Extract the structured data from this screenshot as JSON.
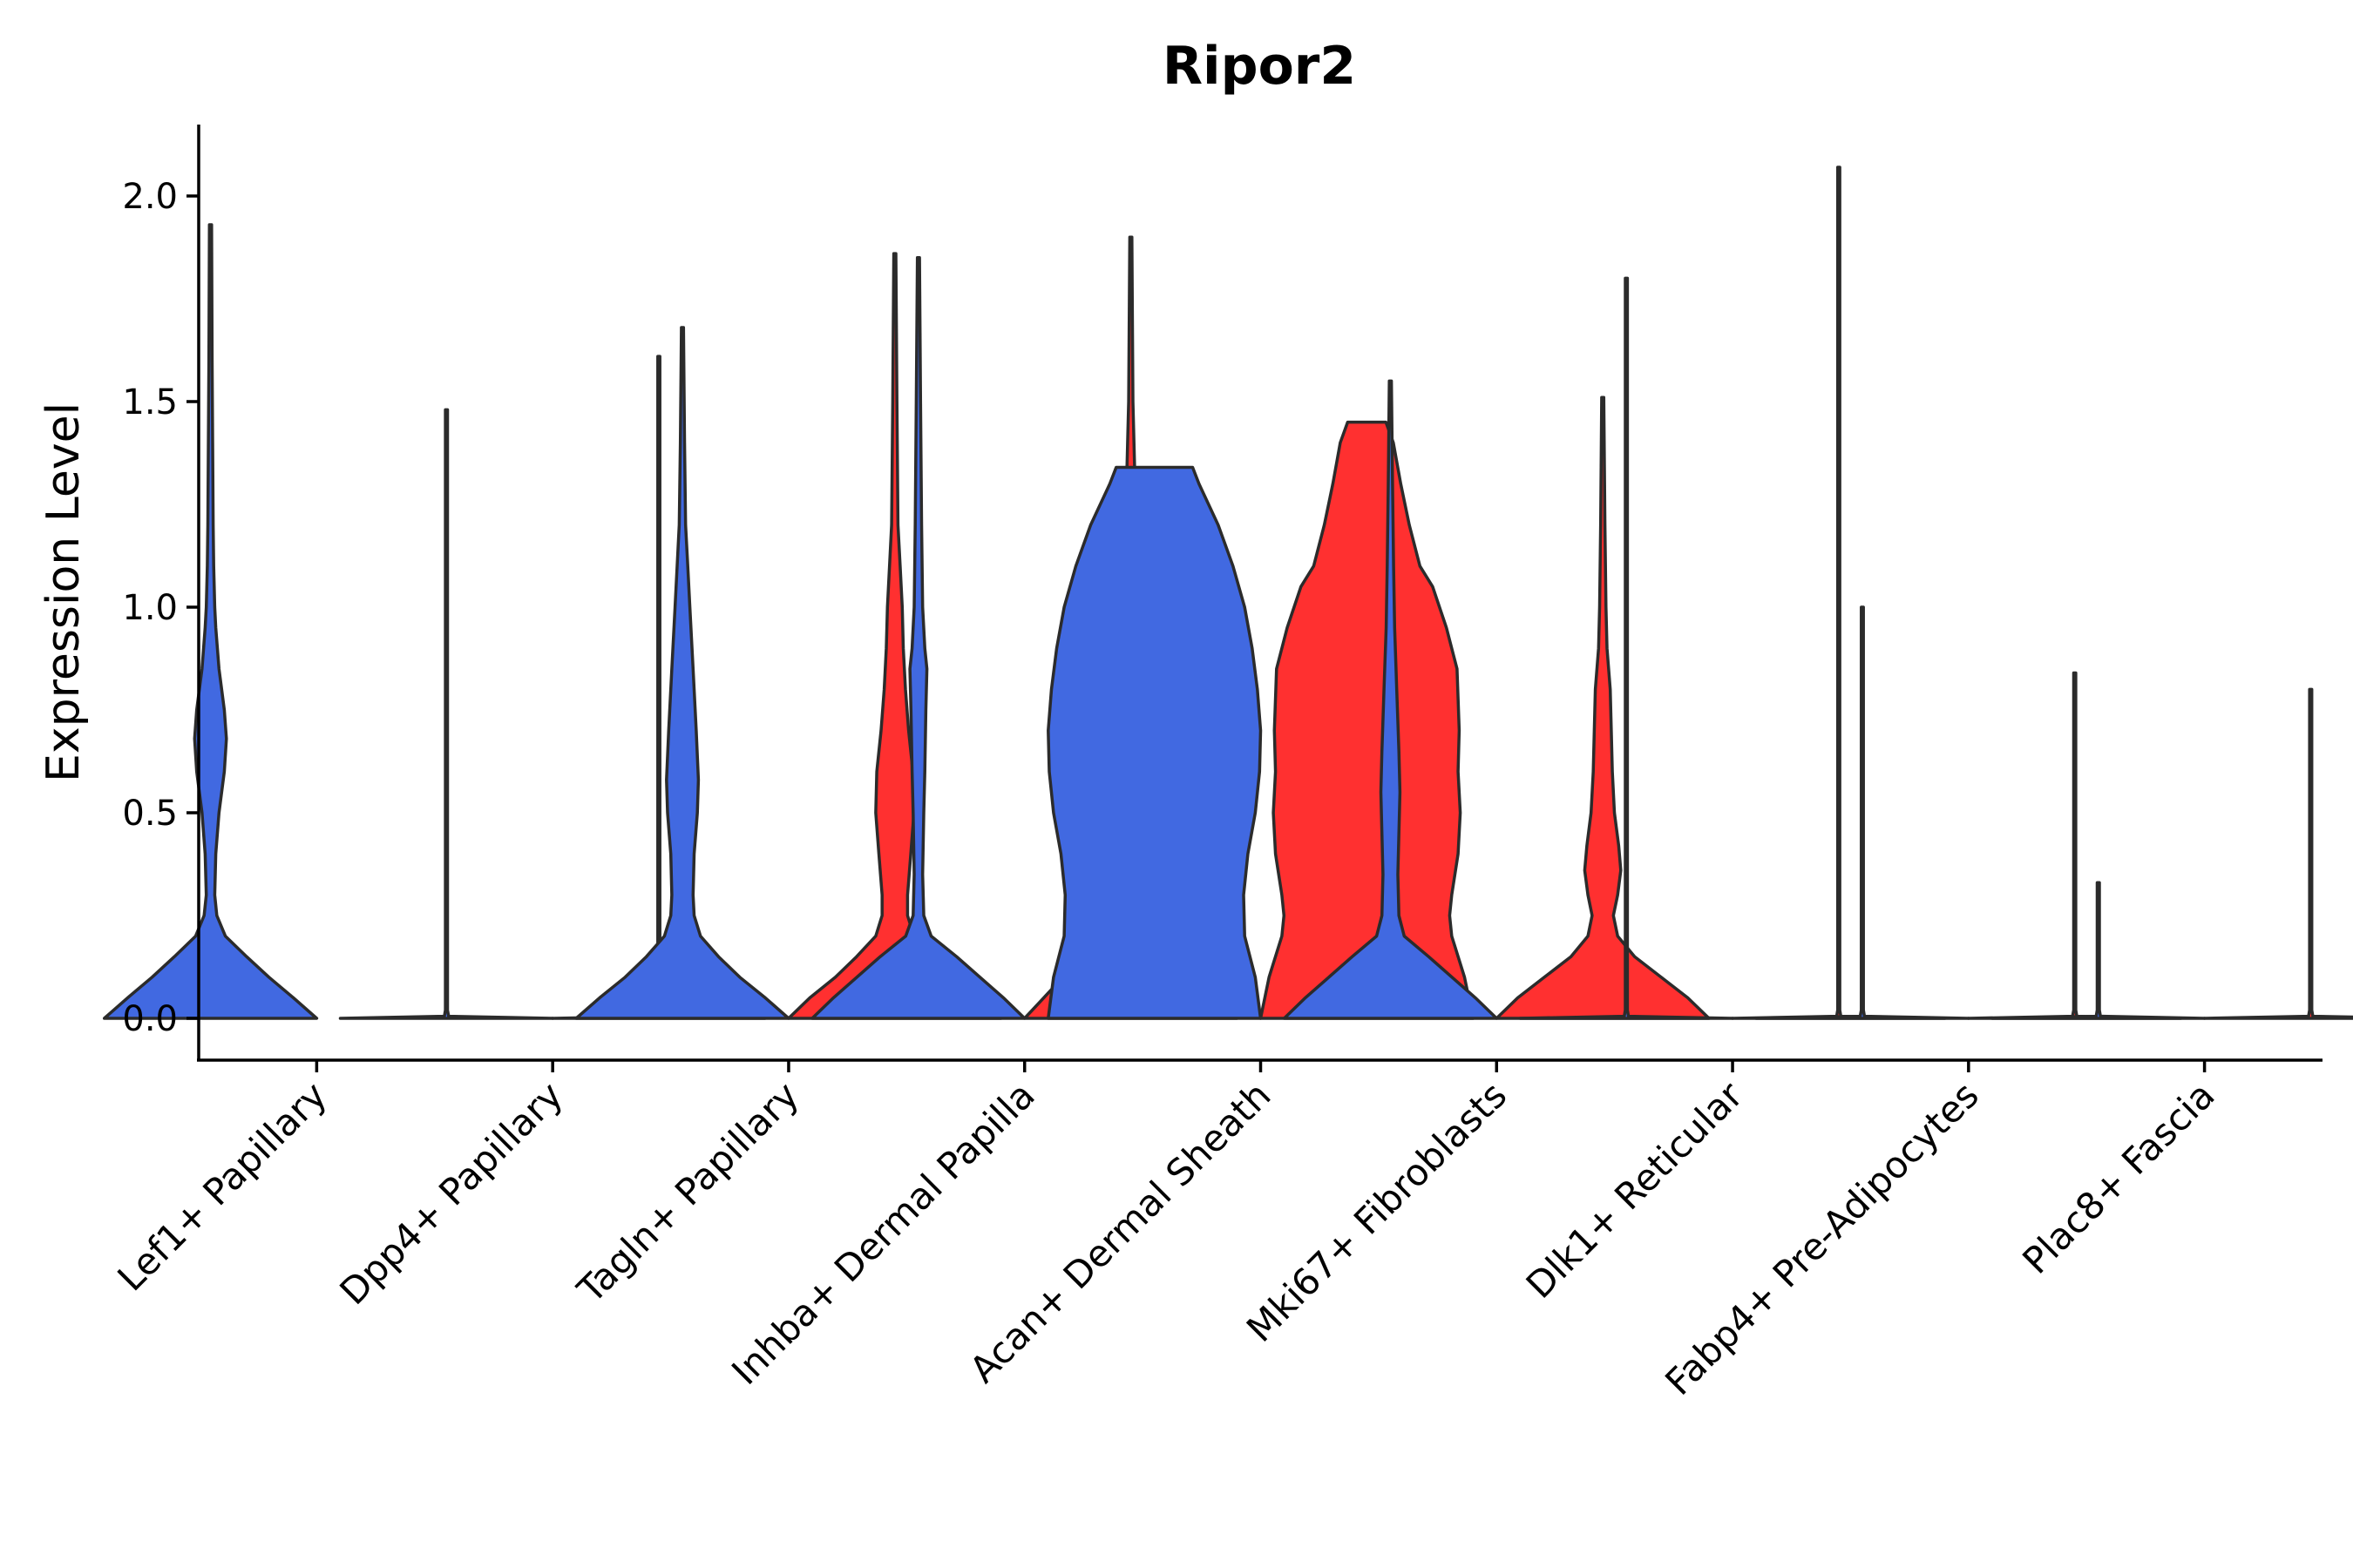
{
  "chart_data": {
    "type": "violin",
    "title": "Ripor2",
    "xlabel": "",
    "ylabel": "Expression Level",
    "ylim": [
      -0.1,
      2.18
    ],
    "yticks": [
      "0.0",
      "0.5",
      "1.0",
      "1.5",
      "2.0"
    ],
    "ytick_values": [
      0,
      0.5,
      1.0,
      1.5,
      2.0
    ],
    "grid": false,
    "legend": "none",
    "colors": {
      "blue": "#4169E1",
      "red": "#FF3030",
      "outline": "#2b2b2b"
    },
    "categories": [
      "Lef1+ Papillary",
      "Dpp4+ Papillary",
      "Tagln+ Papillary",
      "Inhba+ Dermal Papilla",
      "Acan+ Dermal Sheath",
      "Mki67+ Fibroblasts",
      "Dlk1+ Reticular",
      "Fabp4+ Pre-Adipocytes",
      "Plac8+ Fascia"
    ],
    "violins": [
      {
        "category": "Lef1+ Papillary",
        "side": "left",
        "color": "blue",
        "max": 1.93,
        "profile": [
          [
            0,
            1.0
          ],
          [
            0.05,
            0.78
          ],
          [
            0.1,
            0.55
          ],
          [
            0.15,
            0.34
          ],
          [
            0.2,
            0.14
          ],
          [
            0.25,
            0.06
          ],
          [
            0.3,
            0.04
          ],
          [
            0.4,
            0.05
          ],
          [
            0.5,
            0.08
          ],
          [
            0.6,
            0.13
          ],
          [
            0.68,
            0.15
          ],
          [
            0.75,
            0.13
          ],
          [
            0.85,
            0.08
          ],
          [
            0.95,
            0.05
          ],
          [
            1.0,
            0.04
          ],
          [
            1.1,
            0.03
          ],
          [
            1.2,
            0.025
          ],
          [
            1.4,
            0.02
          ],
          [
            1.6,
            0.015
          ],
          [
            1.93,
            0.01
          ]
        ]
      },
      {
        "category": "Dpp4+ Papillary",
        "side": "left",
        "color": "blue",
        "max": 1.48,
        "profile": [
          [
            0,
            1.0
          ],
          [
            0.005,
            0.02
          ],
          [
            0.02,
            0.01
          ],
          [
            1.48,
            0.01
          ]
        ]
      },
      {
        "category": "Dpp4+ Papillary",
        "side": "right",
        "color": "red",
        "max": 1.61,
        "profile": [
          [
            0,
            1.0
          ],
          [
            0.005,
            0.02
          ],
          [
            0.02,
            0.01
          ],
          [
            1.61,
            0.01
          ]
        ]
      },
      {
        "category": "Tagln+ Papillary",
        "side": "left",
        "color": "blue",
        "max": 1.68,
        "profile": [
          [
            0,
            1.0
          ],
          [
            0.05,
            0.78
          ],
          [
            0.1,
            0.54
          ],
          [
            0.15,
            0.34
          ],
          [
            0.2,
            0.17
          ],
          [
            0.25,
            0.11
          ],
          [
            0.3,
            0.1
          ],
          [
            0.4,
            0.11
          ],
          [
            0.5,
            0.14
          ],
          [
            0.58,
            0.15
          ],
          [
            0.7,
            0.13
          ],
          [
            0.85,
            0.1
          ],
          [
            1.0,
            0.07
          ],
          [
            1.1,
            0.05
          ],
          [
            1.2,
            0.03
          ],
          [
            1.4,
            0.02
          ],
          [
            1.68,
            0.01
          ]
        ]
      },
      {
        "category": "Tagln+ Papillary",
        "side": "right",
        "color": "red",
        "max": 1.86,
        "profile": [
          [
            0,
            1.0
          ],
          [
            0.05,
            0.8
          ],
          [
            0.1,
            0.56
          ],
          [
            0.15,
            0.36
          ],
          [
            0.2,
            0.18
          ],
          [
            0.25,
            0.12
          ],
          [
            0.3,
            0.12
          ],
          [
            0.4,
            0.15
          ],
          [
            0.5,
            0.18
          ],
          [
            0.6,
            0.17
          ],
          [
            0.7,
            0.13
          ],
          [
            0.8,
            0.1
          ],
          [
            0.9,
            0.08
          ],
          [
            1.0,
            0.07
          ],
          [
            1.1,
            0.05
          ],
          [
            1.2,
            0.03
          ],
          [
            1.5,
            0.02
          ],
          [
            1.86,
            0.01
          ]
        ]
      },
      {
        "category": "Inhba+ Dermal Papilla",
        "side": "left",
        "color": "blue",
        "max": 1.85,
        "profile": [
          [
            0,
            1.0
          ],
          [
            0.05,
            0.8
          ],
          [
            0.1,
            0.58
          ],
          [
            0.15,
            0.36
          ],
          [
            0.2,
            0.12
          ],
          [
            0.25,
            0.05
          ],
          [
            0.35,
            0.04
          ],
          [
            0.5,
            0.05
          ],
          [
            0.6,
            0.06
          ],
          [
            0.75,
            0.07
          ],
          [
            0.85,
            0.08
          ],
          [
            0.9,
            0.06
          ],
          [
            1.0,
            0.04
          ],
          [
            1.2,
            0.03
          ],
          [
            1.5,
            0.02
          ],
          [
            1.85,
            0.01
          ]
        ]
      },
      {
        "category": "Inhba+ Dermal Papilla",
        "side": "right",
        "color": "red",
        "max": 1.9,
        "profile": [
          [
            0,
            1.0
          ],
          [
            0.05,
            0.82
          ],
          [
            0.1,
            0.64
          ],
          [
            0.15,
            0.46
          ],
          [
            0.2,
            0.3
          ],
          [
            0.25,
            0.2
          ],
          [
            0.3,
            0.15
          ],
          [
            0.4,
            0.14
          ],
          [
            0.5,
            0.15
          ],
          [
            0.65,
            0.16
          ],
          [
            0.8,
            0.14
          ],
          [
            0.9,
            0.12
          ],
          [
            1.0,
            0.1
          ],
          [
            1.1,
            0.08
          ],
          [
            1.2,
            0.06
          ],
          [
            1.3,
            0.04
          ],
          [
            1.5,
            0.02
          ],
          [
            1.9,
            0.01
          ]
        ]
      },
      {
        "category": "Acan+ Dermal Sheath",
        "side": "left",
        "color": "blue",
        "max": 1.34,
        "profile": [
          [
            0,
            1.0
          ],
          [
            0.1,
            0.95
          ],
          [
            0.2,
            0.85
          ],
          [
            0.3,
            0.84
          ],
          [
            0.4,
            0.88
          ],
          [
            0.5,
            0.95
          ],
          [
            0.6,
            0.99
          ],
          [
            0.7,
            1.0
          ],
          [
            0.8,
            0.97
          ],
          [
            0.9,
            0.92
          ],
          [
            1.0,
            0.85
          ],
          [
            1.1,
            0.74
          ],
          [
            1.2,
            0.6
          ],
          [
            1.3,
            0.42
          ],
          [
            1.34,
            0.36
          ]
        ]
      },
      {
        "category": "Acan+ Dermal Sheath",
        "side": "right",
        "color": "red",
        "max": 1.45,
        "profile": [
          [
            0,
            1.0
          ],
          [
            0.1,
            0.92
          ],
          [
            0.2,
            0.8
          ],
          [
            0.25,
            0.78
          ],
          [
            0.3,
            0.8
          ],
          [
            0.4,
            0.86
          ],
          [
            0.5,
            0.88
          ],
          [
            0.6,
            0.86
          ],
          [
            0.7,
            0.87
          ],
          [
            0.85,
            0.85
          ],
          [
            0.95,
            0.75
          ],
          [
            1.05,
            0.62
          ],
          [
            1.1,
            0.5
          ],
          [
            1.2,
            0.4
          ],
          [
            1.3,
            0.32
          ],
          [
            1.4,
            0.25
          ],
          [
            1.45,
            0.18
          ]
        ]
      },
      {
        "category": "Mki67+ Fibroblasts",
        "side": "left",
        "color": "blue",
        "max": 1.55,
        "profile": [
          [
            0,
            1.0
          ],
          [
            0.05,
            0.8
          ],
          [
            0.1,
            0.58
          ],
          [
            0.15,
            0.36
          ],
          [
            0.2,
            0.13
          ],
          [
            0.25,
            0.08
          ],
          [
            0.35,
            0.07
          ],
          [
            0.45,
            0.08
          ],
          [
            0.55,
            0.09
          ],
          [
            0.65,
            0.08
          ],
          [
            0.8,
            0.06
          ],
          [
            0.95,
            0.04
          ],
          [
            1.1,
            0.03
          ],
          [
            1.3,
            0.02
          ],
          [
            1.55,
            0.01
          ]
        ]
      },
      {
        "category": "Mki67+ Fibroblasts",
        "side": "right",
        "color": "red",
        "max": 1.51,
        "profile": [
          [
            0,
            1.0
          ],
          [
            0.05,
            0.8
          ],
          [
            0.1,
            0.55
          ],
          [
            0.15,
            0.3
          ],
          [
            0.2,
            0.14
          ],
          [
            0.25,
            0.1
          ],
          [
            0.3,
            0.14
          ],
          [
            0.36,
            0.17
          ],
          [
            0.42,
            0.15
          ],
          [
            0.5,
            0.11
          ],
          [
            0.6,
            0.09
          ],
          [
            0.7,
            0.08
          ],
          [
            0.8,
            0.07
          ],
          [
            0.9,
            0.04
          ],
          [
            1.0,
            0.03
          ],
          [
            1.2,
            0.02
          ],
          [
            1.51,
            0.01
          ]
        ]
      },
      {
        "category": "Dlk1+ Reticular",
        "side": "left",
        "color": "blue",
        "max": 1.8,
        "profile": [
          [
            0,
            1.0
          ],
          [
            0.005,
            0.02
          ],
          [
            0.02,
            0.01
          ],
          [
            1.8,
            0.01
          ]
        ]
      },
      {
        "category": "Dlk1+ Reticular",
        "side": "right",
        "color": "red",
        "max": 2.07,
        "profile": [
          [
            0,
            1.0
          ],
          [
            0.005,
            0.02
          ],
          [
            0.02,
            0.01
          ],
          [
            2.07,
            0.01
          ]
        ]
      },
      {
        "category": "Fabp4+ Pre-Adipocytes",
        "side": "left",
        "color": "blue",
        "max": 1.0,
        "profile": [
          [
            0,
            1.0
          ],
          [
            0.005,
            0.02
          ],
          [
            0.02,
            0.01
          ],
          [
            1.0,
            0.01
          ]
        ]
      },
      {
        "category": "Fabp4+ Pre-Adipocytes",
        "side": "right",
        "color": "red",
        "max": 0.84,
        "profile": [
          [
            0,
            1.0
          ],
          [
            0.005,
            0.02
          ],
          [
            0.02,
            0.01
          ],
          [
            0.84,
            0.01
          ]
        ]
      },
      {
        "category": "Plac8+ Fascia",
        "side": "left",
        "color": "blue",
        "max": 0.33,
        "profile": [
          [
            0,
            1.0
          ],
          [
            0.005,
            0.02
          ],
          [
            0.02,
            0.01
          ],
          [
            0.33,
            0.01
          ]
        ]
      },
      {
        "category": "Plac8+ Fascia",
        "side": "right",
        "color": "red",
        "max": 0.8,
        "profile": [
          [
            0,
            1.0
          ],
          [
            0.005,
            0.02
          ],
          [
            0.02,
            0.01
          ],
          [
            0.8,
            0.01
          ]
        ]
      }
    ]
  }
}
